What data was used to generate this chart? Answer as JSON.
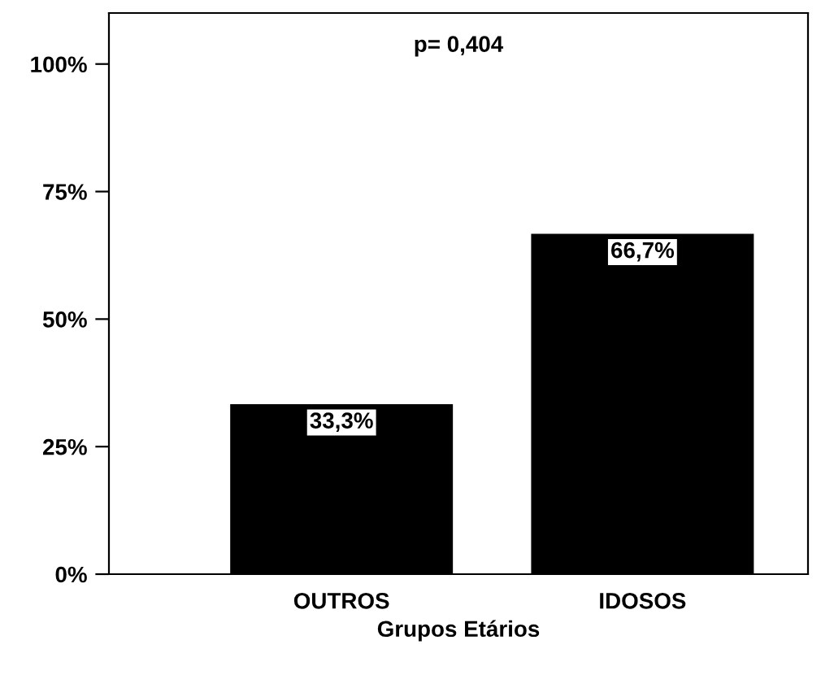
{
  "chart_data": {
    "type": "bar",
    "xlabel": "Grupos Etários",
    "categories": [
      "OUTROS",
      "IDOSOS"
    ],
    "values": [
      33.3,
      66.7
    ],
    "value_labels": [
      "33,3%",
      "66,7%"
    ],
    "color": "#000000",
    "ylim": [
      0,
      110
    ],
    "yticks": [
      {
        "value": 0,
        "label": "0%"
      },
      {
        "value": 25,
        "label": "25%"
      },
      {
        "value": 50,
        "label": "50%"
      },
      {
        "value": 75,
        "label": "75%"
      },
      {
        "value": 100,
        "label": "100%"
      }
    ],
    "annotations": [
      "p= 0,404"
    ],
    "grid": false,
    "legend": false
  }
}
